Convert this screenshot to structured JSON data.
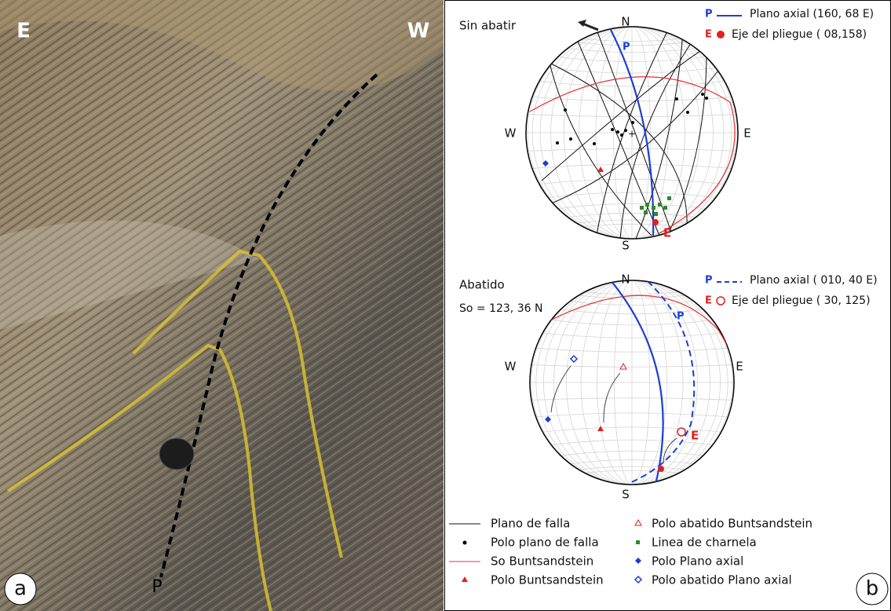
{
  "photo": {
    "label": "a",
    "left_label": "E",
    "right_label": "W",
    "axis_label": "P"
  },
  "figure_b": {
    "label": "b",
    "top_net": {
      "title": "Sin abatir",
      "north": "N",
      "south": "S",
      "east": "E",
      "west": "W",
      "plane_label": "P",
      "axis_label": "E",
      "legend": [
        {
          "symbol": "P",
          "text": "Plano axial (160, 68 E)"
        },
        {
          "symbol": "E",
          "text": "Eje del pliegue ( 08,158)"
        }
      ]
    },
    "bottom_net": {
      "title": "Abatido",
      "bedding": "So = 123, 36 N",
      "north": "N",
      "south": "S",
      "east": "E",
      "west": "W",
      "plane_label": "P",
      "axis_label": "E",
      "legend": [
        {
          "symbol": "P",
          "text": "Plano axial ( 010, 40 E)"
        },
        {
          "symbol": "E",
          "text": "Eje del pliegue ( 30, 125)"
        }
      ]
    },
    "legend": [
      "Plano de falla",
      "Polo plano de falla",
      "So Buntsandstein",
      "Polo Buntsandstein",
      "Polo abatido Buntsandstein",
      "Linea de charnela",
      "Polo Plano axial",
      "Polo abatido Plano axial"
    ]
  }
}
